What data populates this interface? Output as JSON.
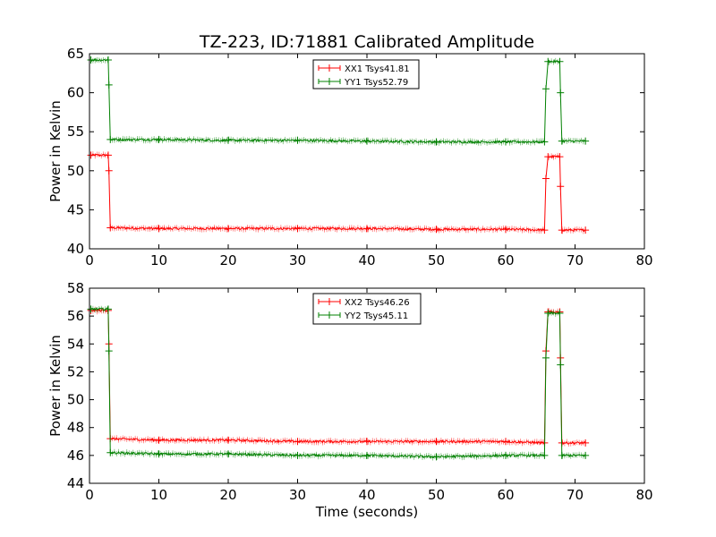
{
  "chart_data": [
    {
      "type": "line",
      "title": "TZ-223, ID:71881 Calibrated Amplitude",
      "xlabel": "",
      "ylabel": "Power in Kelvin",
      "xlim": [
        0,
        80
      ],
      "ylim": [
        40,
        65
      ],
      "xticks": [
        "0",
        "10",
        "20",
        "30",
        "40",
        "50",
        "60",
        "70",
        "80"
      ],
      "yticks": [
        "40",
        "45",
        "50",
        "55",
        "60",
        "65"
      ],
      "legend_position": "top-center",
      "series": [
        {
          "name": "XX1 Tsys41.81",
          "color": "#ff0000",
          "points": [
            [
              0.2,
              52.0
            ],
            [
              2.7,
              52.0
            ],
            [
              2.8,
              50.0
            ],
            [
              3.0,
              42.7
            ],
            [
              10,
              42.6
            ],
            [
              20,
              42.6
            ],
            [
              30,
              42.6
            ],
            [
              40,
              42.6
            ],
            [
              50,
              42.5
            ],
            [
              60,
              42.5
            ],
            [
              65.6,
              42.4
            ],
            [
              65.8,
              49.0
            ],
            [
              66.1,
              51.8
            ],
            [
              67.8,
              51.8
            ],
            [
              67.9,
              48.0
            ],
            [
              68.1,
              42.4
            ],
            [
              71.5,
              42.4
            ]
          ]
        },
        {
          "name": "YY1 Tsys52.79",
          "color": "#008000",
          "points": [
            [
              0.2,
              64.2
            ],
            [
              2.7,
              64.2
            ],
            [
              2.8,
              61.0
            ],
            [
              3.0,
              54.0
            ],
            [
              10,
              54.0
            ],
            [
              20,
              53.9
            ],
            [
              30,
              53.9
            ],
            [
              40,
              53.8
            ],
            [
              50,
              53.7
            ],
            [
              60,
              53.7
            ],
            [
              65.6,
              53.7
            ],
            [
              65.8,
              60.5
            ],
            [
              66.1,
              64.0
            ],
            [
              67.8,
              64.0
            ],
            [
              67.9,
              60.0
            ],
            [
              68.1,
              53.8
            ],
            [
              71.5,
              53.8
            ]
          ]
        }
      ]
    },
    {
      "type": "line",
      "title": "",
      "xlabel": "Time (seconds)",
      "ylabel": "Power in Kelvin",
      "xlim": [
        0,
        80
      ],
      "ylim": [
        44,
        58
      ],
      "xticks": [
        "0",
        "10",
        "20",
        "30",
        "40",
        "50",
        "60",
        "70",
        "80"
      ],
      "yticks": [
        "44",
        "46",
        "48",
        "50",
        "52",
        "54",
        "56",
        "58"
      ],
      "legend_position": "top-center",
      "series": [
        {
          "name": "XX2 Tsys46.26",
          "color": "#ff0000",
          "points": [
            [
              0.2,
              56.4
            ],
            [
              2.7,
              56.4
            ],
            [
              2.8,
              54.0
            ],
            [
              3.0,
              47.2
            ],
            [
              10,
              47.1
            ],
            [
              20,
              47.1
            ],
            [
              30,
              47.0
            ],
            [
              40,
              47.0
            ],
            [
              50,
              47.0
            ],
            [
              60,
              47.0
            ],
            [
              65.6,
              46.9
            ],
            [
              65.8,
              53.5
            ],
            [
              66.1,
              56.3
            ],
            [
              67.8,
              56.3
            ],
            [
              67.9,
              53.0
            ],
            [
              68.1,
              46.9
            ],
            [
              71.5,
              46.9
            ]
          ]
        },
        {
          "name": "YY2 Tsys45.11",
          "color": "#008000",
          "points": [
            [
              0.2,
              56.5
            ],
            [
              2.7,
              56.5
            ],
            [
              2.8,
              53.5
            ],
            [
              3.0,
              46.2
            ],
            [
              10,
              46.1
            ],
            [
              20,
              46.1
            ],
            [
              30,
              46.0
            ],
            [
              40,
              46.0
            ],
            [
              50,
              45.9
            ],
            [
              60,
              46.0
            ],
            [
              65.6,
              46.0
            ],
            [
              65.8,
              53.0
            ],
            [
              66.1,
              56.2
            ],
            [
              67.8,
              56.2
            ],
            [
              67.9,
              52.5
            ],
            [
              68.1,
              46.0
            ],
            [
              71.5,
              46.0
            ]
          ]
        }
      ]
    }
  ]
}
